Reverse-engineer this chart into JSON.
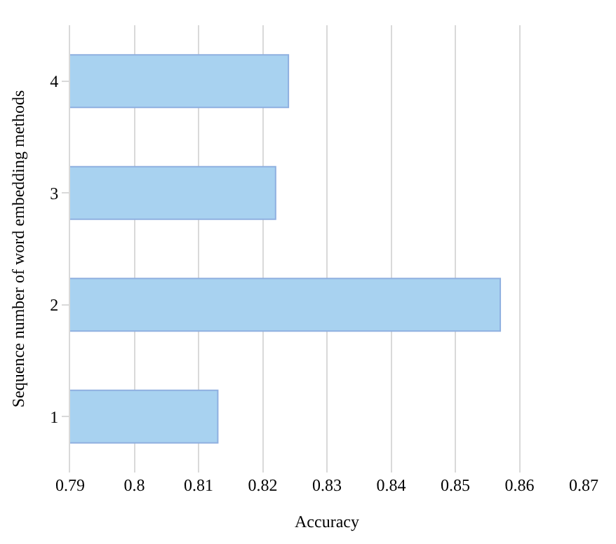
{
  "chart_data": {
    "type": "bar",
    "orientation": "horizontal",
    "xlabel": "Accuracy",
    "ylabel": "Sequence number of word embedding methods",
    "categories": [
      "4",
      "3",
      "2",
      "1"
    ],
    "values": [
      0.824,
      0.822,
      0.857,
      0.813
    ],
    "color": "#a8d2f0",
    "xlim": [
      0.79,
      0.87
    ],
    "xticks": [
      0.79,
      0.8,
      0.81,
      0.82,
      0.83,
      0.84,
      0.85,
      0.86,
      0.87
    ],
    "grid": "x"
  }
}
